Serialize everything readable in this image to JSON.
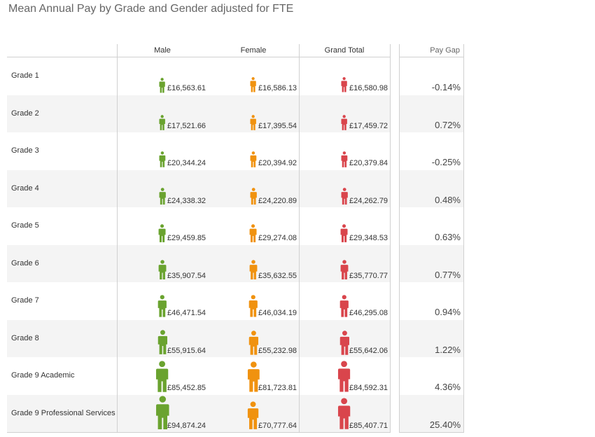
{
  "title": "Mean Annual Pay by Grade and Gender adjusted for FTE",
  "columns": {
    "male": "Male",
    "female": "Female",
    "total": "Grand Total",
    "gap": "Pay Gap"
  },
  "colors": {
    "male": "#6aa32f",
    "female": "#f0920f",
    "total": "#d9454c"
  },
  "icons": {
    "male": "person-icon",
    "female": "person-icon",
    "total": "person-icon"
  },
  "chart_data": {
    "type": "table",
    "title": "Mean Annual Pay by Grade and Gender adjusted for FTE",
    "columns": [
      "Male",
      "Female",
      "Grand Total",
      "Pay Gap"
    ],
    "categories": [
      "Grade 1",
      "Grade 2",
      "Grade 3",
      "Grade 4",
      "Grade 5",
      "Grade 6",
      "Grade 7",
      "Grade 8",
      "Grade 9 Academic",
      "Grade 9 Professional Services"
    ],
    "series": [
      {
        "name": "Male",
        "values": [
          16563.61,
          17521.66,
          20344.24,
          24338.32,
          29459.85,
          35907.54,
          46471.54,
          55915.64,
          85452.85,
          94874.24
        ]
      },
      {
        "name": "Female",
        "values": [
          16586.13,
          17395.54,
          20394.92,
          24220.89,
          29274.08,
          35632.55,
          46034.19,
          55232.98,
          81723.81,
          70777.64
        ]
      },
      {
        "name": "Grand Total",
        "values": [
          16580.98,
          17459.72,
          20379.84,
          24262.79,
          29348.53,
          35770.77,
          46295.08,
          55642.06,
          84592.31,
          85407.71
        ]
      },
      {
        "name": "Pay Gap",
        "values": [
          -0.14,
          0.72,
          -0.25,
          0.48,
          0.63,
          0.77,
          0.94,
          1.22,
          4.36,
          25.4
        ]
      }
    ],
    "rows": [
      {
        "grade": "Grade 1",
        "male": "£16,563.61",
        "female": "£16,586.13",
        "total": "£16,580.98",
        "gap": "-0.14%"
      },
      {
        "grade": "Grade 2",
        "male": "£17,521.66",
        "female": "£17,395.54",
        "total": "£17,459.72",
        "gap": "0.72%"
      },
      {
        "grade": "Grade 3",
        "male": "£20,344.24",
        "female": "£20,394.92",
        "total": "£20,379.84",
        "gap": "-0.25%"
      },
      {
        "grade": "Grade 4",
        "male": "£24,338.32",
        "female": "£24,220.89",
        "total": "£24,262.79",
        "gap": "0.48%"
      },
      {
        "grade": "Grade 5",
        "male": "£29,459.85",
        "female": "£29,274.08",
        "total": "£29,348.53",
        "gap": "0.63%"
      },
      {
        "grade": "Grade 6",
        "male": "£35,907.54",
        "female": "£35,632.55",
        "total": "£35,770.77",
        "gap": "0.77%"
      },
      {
        "grade": "Grade 7",
        "male": "£46,471.54",
        "female": "£46,034.19",
        "total": "£46,295.08",
        "gap": "0.94%"
      },
      {
        "grade": "Grade 8",
        "male": "£55,915.64",
        "female": "£55,232.98",
        "total": "£55,642.06",
        "gap": "1.22%"
      },
      {
        "grade": "Grade 9 Academic",
        "male": "£85,452.85",
        "female": "£81,723.81",
        "total": "£84,592.31",
        "gap": "4.36%"
      },
      {
        "grade": "Grade 9 Professional Services",
        "male": "£94,874.24",
        "female": "£70,777.64",
        "total": "£85,407.71",
        "gap": "25.40%"
      }
    ]
  }
}
